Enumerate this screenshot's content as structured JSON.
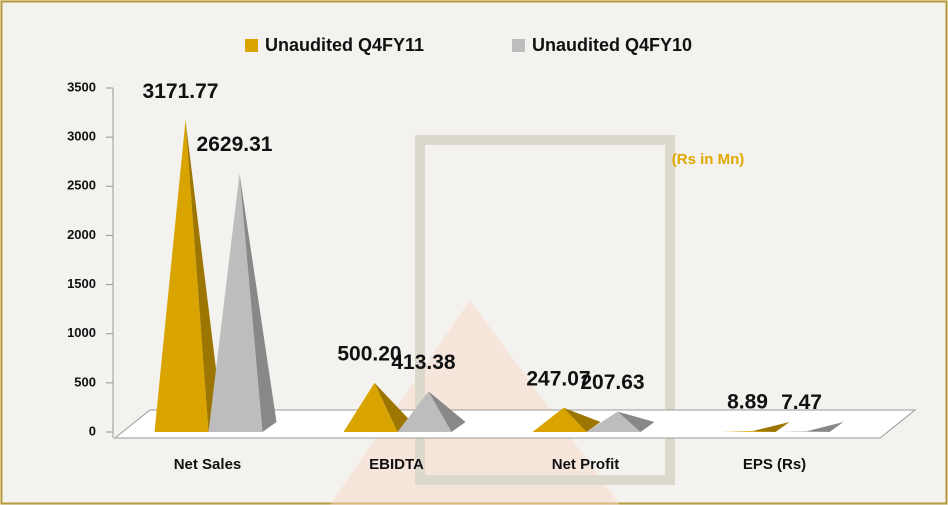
{
  "chart_data": {
    "type": "pyramid",
    "annotation": "(Rs in Mn)",
    "categories": [
      "Net Sales",
      "EBIDTA",
      "Net Profit",
      "EPS (Rs)"
    ],
    "series": [
      {
        "name": "Unaudited Q4FY11",
        "color": "#d9a400",
        "values": [
          3171.77,
          500.2,
          247.07,
          8.89
        ],
        "value_labels": [
          "3171.77",
          "500.20",
          "247.07",
          "8.89"
        ]
      },
      {
        "name": "Unaudited Q4FY10",
        "color": "#bdbdbd",
        "values": [
          2629.31,
          413.38,
          207.63,
          7.47
        ],
        "value_labels": [
          "2629.31",
          "413.38",
          "207.63",
          "7.47"
        ]
      }
    ],
    "ylim": [
      0,
      3500
    ],
    "yticks": [
      0,
      500,
      1000,
      1500,
      2000,
      2500,
      3000,
      3500
    ],
    "grid": false,
    "legend": "top"
  }
}
